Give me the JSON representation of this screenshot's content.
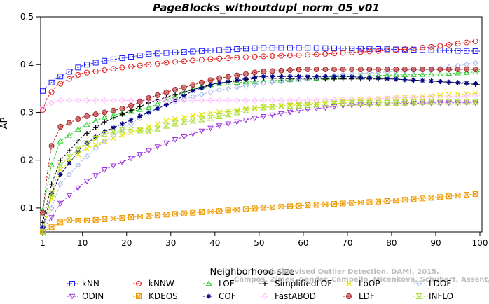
{
  "chart_data": {
    "type": "line",
    "title": "PageBlocks_withoutdupl_norm_05_v01",
    "xlabel": "Neighborhood size",
    "ylabel": "AP",
    "xlim": [
      1,
      100
    ],
    "ylim": [
      0.05,
      0.5
    ],
    "xticks": [
      1,
      10,
      20,
      30,
      40,
      50,
      60,
      70,
      80,
      90,
      100
    ],
    "yticks": [
      0.1,
      0.2,
      0.3,
      0.4,
      0.5
    ],
    "watermark": "Campos, Zimek, Sander, Campello, Micenkova, Schubert, Assent, Houle",
    "watermark_top": "Unsupervised Outlier Detection. DAMI, 2015.",
    "legend_position": "bottom",
    "series": [
      {
        "name": "kNN",
        "color": "#1a1aff",
        "marker": "square",
        "points": [
          [
            1,
            0.345
          ],
          [
            2,
            0.355
          ],
          [
            4,
            0.37
          ],
          [
            8,
            0.39
          ],
          [
            10,
            0.398
          ],
          [
            15,
            0.408
          ],
          [
            20,
            0.415
          ],
          [
            25,
            0.422
          ],
          [
            30,
            0.425
          ],
          [
            40,
            0.43
          ],
          [
            50,
            0.435
          ],
          [
            60,
            0.435
          ],
          [
            70,
            0.434
          ],
          [
            80,
            0.432
          ],
          [
            90,
            0.43
          ],
          [
            100,
            0.428
          ]
        ]
      },
      {
        "name": "kNNW",
        "color": "#e02020",
        "marker": "circle-open",
        "points": [
          [
            1,
            0.305
          ],
          [
            2,
            0.33
          ],
          [
            4,
            0.355
          ],
          [
            8,
            0.375
          ],
          [
            10,
            0.382
          ],
          [
            20,
            0.395
          ],
          [
            30,
            0.405
          ],
          [
            40,
            0.412
          ],
          [
            50,
            0.417
          ],
          [
            60,
            0.42
          ],
          [
            70,
            0.425
          ],
          [
            80,
            0.43
          ],
          [
            90,
            0.438
          ],
          [
            100,
            0.45
          ]
        ]
      },
      {
        "name": "LOF",
        "color": "#22cc22",
        "marker": "triangle-up",
        "points": [
          [
            1,
            0.095
          ],
          [
            3,
            0.19
          ],
          [
            5,
            0.24
          ],
          [
            10,
            0.27
          ],
          [
            15,
            0.29
          ],
          [
            20,
            0.3
          ],
          [
            25,
            0.31
          ],
          [
            30,
            0.33
          ],
          [
            35,
            0.35
          ],
          [
            40,
            0.36
          ],
          [
            50,
            0.365
          ],
          [
            60,
            0.37
          ],
          [
            70,
            0.375
          ],
          [
            80,
            0.378
          ],
          [
            90,
            0.38
          ],
          [
            100,
            0.385
          ]
        ]
      },
      {
        "name": "SimplifiedLOF",
        "color": "#000000",
        "marker": "plus",
        "points": [
          [
            1,
            0.07
          ],
          [
            3,
            0.15
          ],
          [
            5,
            0.2
          ],
          [
            10,
            0.25
          ],
          [
            15,
            0.28
          ],
          [
            20,
            0.3
          ],
          [
            25,
            0.32
          ],
          [
            30,
            0.335
          ],
          [
            40,
            0.36
          ],
          [
            50,
            0.372
          ],
          [
            60,
            0.37
          ],
          [
            70,
            0.37
          ],
          [
            80,
            0.37
          ],
          [
            90,
            0.365
          ],
          [
            100,
            0.358
          ]
        ]
      },
      {
        "name": "LoOP",
        "color": "#e6e600",
        "marker": "x",
        "points": [
          [
            1,
            0.05
          ],
          [
            3,
            0.12
          ],
          [
            5,
            0.18
          ],
          [
            10,
            0.22
          ],
          [
            15,
            0.24
          ],
          [
            20,
            0.255
          ],
          [
            25,
            0.27
          ],
          [
            30,
            0.285
          ],
          [
            40,
            0.3
          ],
          [
            50,
            0.31
          ],
          [
            60,
            0.318
          ],
          [
            70,
            0.325
          ],
          [
            80,
            0.33
          ],
          [
            90,
            0.335
          ],
          [
            100,
            0.34
          ]
        ]
      },
      {
        "name": "LDOF",
        "color": "#aabbee",
        "marker": "diamond-open",
        "points": [
          [
            1,
            0.06
          ],
          [
            3,
            0.1
          ],
          [
            5,
            0.15
          ],
          [
            10,
            0.2
          ],
          [
            15,
            0.24
          ],
          [
            20,
            0.27
          ],
          [
            25,
            0.3
          ],
          [
            30,
            0.32
          ],
          [
            40,
            0.345
          ],
          [
            50,
            0.36
          ],
          [
            60,
            0.37
          ],
          [
            70,
            0.38
          ],
          [
            80,
            0.385
          ],
          [
            90,
            0.39
          ],
          [
            100,
            0.405
          ]
        ]
      },
      {
        "name": "ODIN",
        "color": "#9933dd",
        "marker": "triangle-down",
        "points": [
          [
            1,
            0.055
          ],
          [
            3,
            0.08
          ],
          [
            5,
            0.11
          ],
          [
            10,
            0.15
          ],
          [
            15,
            0.18
          ],
          [
            20,
            0.2
          ],
          [
            25,
            0.22
          ],
          [
            30,
            0.24
          ],
          [
            40,
            0.27
          ],
          [
            50,
            0.29
          ],
          [
            60,
            0.305
          ],
          [
            70,
            0.315
          ],
          [
            80,
            0.318
          ],
          [
            90,
            0.32
          ],
          [
            100,
            0.32
          ]
        ]
      },
      {
        "name": "KDEOS",
        "color": "#ee9900",
        "marker": "square-x",
        "points": [
          [
            1,
            0.05
          ],
          [
            3,
            0.06
          ],
          [
            6,
            0.075
          ],
          [
            10,
            0.073
          ],
          [
            20,
            0.08
          ],
          [
            30,
            0.087
          ],
          [
            40,
            0.093
          ],
          [
            50,
            0.1
          ],
          [
            60,
            0.105
          ],
          [
            70,
            0.11
          ],
          [
            80,
            0.115
          ],
          [
            90,
            0.122
          ],
          [
            100,
            0.13
          ]
        ]
      },
      {
        "name": "COF",
        "color": "#000088",
        "marker": "star",
        "points": [
          [
            1,
            0.06
          ],
          [
            3,
            0.13
          ],
          [
            5,
            0.17
          ],
          [
            10,
            0.23
          ],
          [
            15,
            0.26
          ],
          [
            20,
            0.28
          ],
          [
            25,
            0.3
          ],
          [
            30,
            0.32
          ],
          [
            35,
            0.345
          ],
          [
            40,
            0.36
          ],
          [
            50,
            0.375
          ],
          [
            60,
            0.375
          ],
          [
            70,
            0.375
          ],
          [
            80,
            0.37
          ],
          [
            90,
            0.365
          ],
          [
            100,
            0.36
          ]
        ]
      },
      {
        "name": "FastABOD",
        "color": "#ffbbff",
        "marker": "diamond-open",
        "points": [
          [
            1,
            0.31
          ],
          [
            3,
            0.32
          ],
          [
            5,
            0.325
          ],
          [
            10,
            0.325
          ],
          [
            20,
            0.325
          ],
          [
            30,
            0.325
          ],
          [
            40,
            0.325
          ],
          [
            50,
            0.325
          ],
          [
            60,
            0.325
          ],
          [
            70,
            0.327
          ],
          [
            80,
            0.33
          ],
          [
            90,
            0.332
          ],
          [
            100,
            0.335
          ]
        ]
      },
      {
        "name": "LDF",
        "color": "#aa2222",
        "marker": "circle-filled",
        "points": [
          [
            1,
            0.09
          ],
          [
            2,
            0.17
          ],
          [
            3,
            0.23
          ],
          [
            5,
            0.27
          ],
          [
            10,
            0.29
          ],
          [
            15,
            0.3
          ],
          [
            20,
            0.31
          ],
          [
            25,
            0.33
          ],
          [
            30,
            0.345
          ],
          [
            40,
            0.37
          ],
          [
            50,
            0.385
          ],
          [
            60,
            0.39
          ],
          [
            70,
            0.39
          ],
          [
            80,
            0.39
          ],
          [
            90,
            0.39
          ],
          [
            100,
            0.39
          ]
        ]
      },
      {
        "name": "INFLO",
        "color": "#aadd33",
        "marker": "hourglass",
        "points": [
          [
            1,
            0.05
          ],
          [
            3,
            0.13
          ],
          [
            5,
            0.19
          ],
          [
            10,
            0.23
          ],
          [
            15,
            0.255
          ],
          [
            20,
            0.265
          ],
          [
            25,
            0.26
          ],
          [
            30,
            0.275
          ],
          [
            40,
            0.29
          ],
          [
            50,
            0.31
          ],
          [
            60,
            0.315
          ],
          [
            70,
            0.32
          ],
          [
            80,
            0.32
          ],
          [
            90,
            0.322
          ],
          [
            100,
            0.322
          ]
        ]
      }
    ]
  }
}
